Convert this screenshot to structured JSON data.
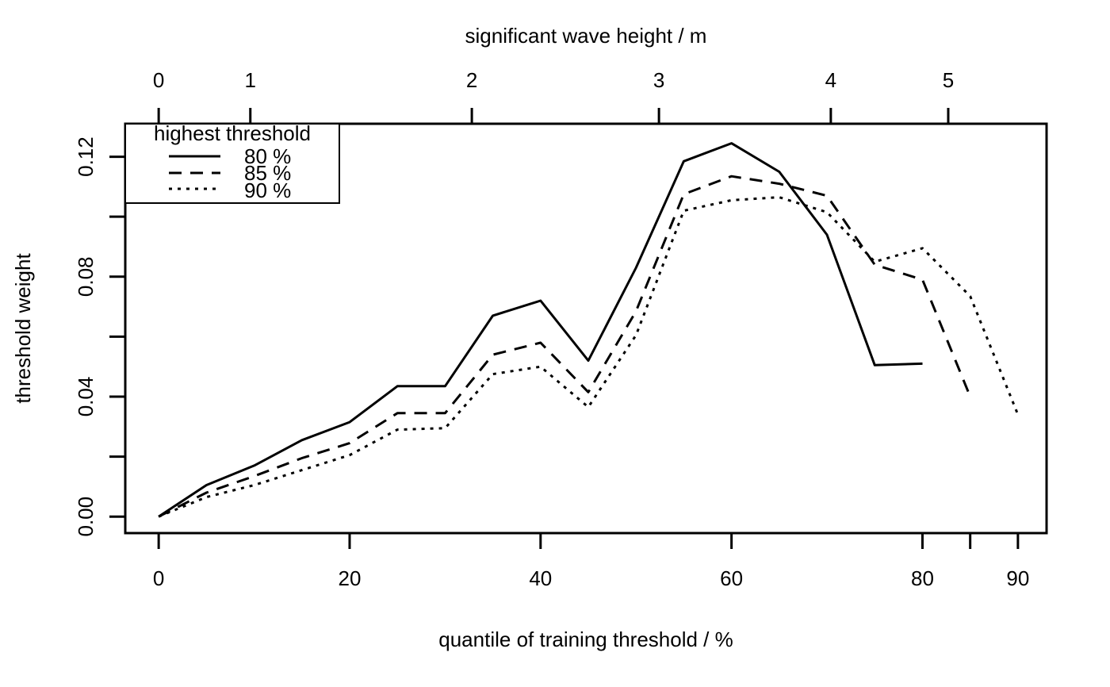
{
  "chart_data": {
    "type": "line",
    "xlabel": "quantile of training threshold / %",
    "ylabel": "threshold weight",
    "top_axis_label": "significant wave height / m",
    "xlim": [
      -3.5,
      93
    ],
    "ylim": [
      -0.0055,
      0.131
    ],
    "x_ticks": [
      0,
      20,
      40,
      60,
      80,
      85,
      90
    ],
    "x_tick_labels": [
      "0",
      "20",
      "40",
      "60",
      "80",
      "",
      "90"
    ],
    "y_ticks": [
      0.0,
      0.02,
      0.04,
      0.06,
      0.08,
      0.1,
      0.12
    ],
    "y_tick_labels": [
      "0.00",
      "",
      "0.04",
      "",
      "0.08",
      "",
      "0.12"
    ],
    "top_ticks": [
      0,
      9.6,
      32.8,
      52.4,
      70.4,
      82.7
    ],
    "top_tick_labels": [
      "0",
      "1",
      "2",
      "3",
      "4",
      "5"
    ],
    "legend": {
      "title": "highest threshold",
      "position": "top-left",
      "entries": [
        "80 %",
        "85 %",
        "90 %"
      ]
    },
    "series": [
      {
        "name": "80 %",
        "style": "solid",
        "x": [
          0,
          5,
          10,
          15,
          20,
          25,
          30,
          35,
          40,
          45,
          50,
          55,
          60,
          65,
          70,
          75,
          80
        ],
        "y": [
          0.0,
          0.0105,
          0.017,
          0.0255,
          0.0315,
          0.0435,
          0.0435,
          0.067,
          0.072,
          0.052,
          0.083,
          0.1185,
          0.1245,
          0.115,
          0.094,
          0.0505,
          0.051
        ]
      },
      {
        "name": "85 %",
        "style": "dashed",
        "x": [
          0,
          5,
          10,
          15,
          20,
          25,
          30,
          35,
          40,
          45,
          50,
          55,
          60,
          65,
          70,
          75,
          80,
          85
        ],
        "y": [
          0.0,
          0.008,
          0.0135,
          0.0195,
          0.0245,
          0.0345,
          0.0345,
          0.054,
          0.058,
          0.0415,
          0.0685,
          0.1075,
          0.1135,
          0.111,
          0.107,
          0.084,
          0.079,
          0.04
        ]
      },
      {
        "name": "90 %",
        "style": "dotted",
        "x": [
          0,
          5,
          10,
          15,
          20,
          25,
          30,
          35,
          40,
          45,
          50,
          55,
          60,
          65,
          70,
          75,
          80,
          85,
          90
        ],
        "y": [
          0.0,
          0.0065,
          0.0105,
          0.0155,
          0.0205,
          0.029,
          0.0295,
          0.0475,
          0.05,
          0.0365,
          0.0605,
          0.102,
          0.1055,
          0.1065,
          0.1015,
          0.085,
          0.0895,
          0.0735,
          0.034
        ]
      }
    ]
  }
}
